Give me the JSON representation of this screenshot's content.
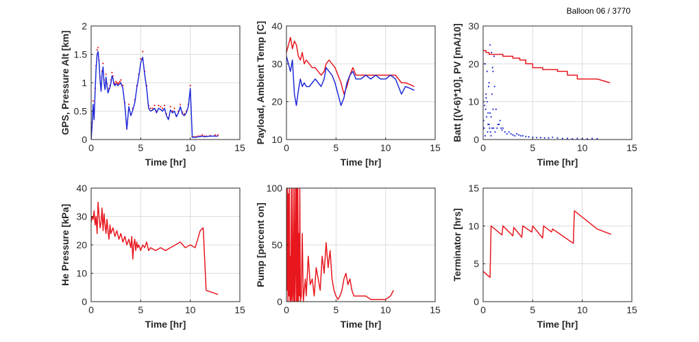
{
  "figure": {
    "title": "Balloon 06 / 3770"
  },
  "colors": {
    "red": "#e8161d",
    "blue": "#1f2ad6",
    "grid": "#dcdcdc",
    "axis": "#262626"
  },
  "chart_data": [
    {
      "type": "line",
      "xlabel": "Time [hr]",
      "ylabel": "GPS, Pressure Alt [km]",
      "xlim": [
        0,
        15
      ],
      "ylim": [
        0,
        2
      ],
      "xticks": [
        0,
        5,
        10,
        15
      ],
      "yticks": [
        0,
        0.5,
        1,
        1.5,
        2
      ],
      "grid": true,
      "series": [
        {
          "color": "#e8161d",
          "style": "dots",
          "x": [
            0,
            0.1,
            0.2,
            0.3,
            0.4,
            0.5,
            0.6,
            0.7,
            0.8,
            0.9,
            1.0,
            1.1,
            1.2,
            1.3,
            1.4,
            1.5,
            1.6,
            1.7,
            1.8,
            1.9,
            2.0,
            2.1,
            2.2,
            2.3,
            2.4,
            2.5,
            2.6,
            2.7,
            2.8,
            2.9,
            3.0,
            3.2,
            3.4,
            3.6,
            3.8,
            4.0,
            4.2,
            4.4,
            4.6,
            4.8,
            5.0,
            5.2,
            5.4,
            5.6,
            5.8,
            6.0,
            6.2,
            6.4,
            6.6,
            6.8,
            7.0,
            7.2,
            7.4,
            7.6,
            7.8,
            8.0,
            8.2,
            8.4,
            8.6,
            8.8,
            9.0,
            9.2,
            9.4,
            9.6,
            9.8,
            10.0,
            10.2,
            10.4,
            10.6,
            10.8,
            11.0,
            11.2,
            11.4,
            11.6,
            12.0,
            12.5,
            12.8
          ],
          "y": [
            0.05,
            0.3,
            0.68,
            0.4,
            0.9,
            1.3,
            1.58,
            1.62,
            1.4,
            1.1,
            0.9,
            1.2,
            1.34,
            1.05,
            0.92,
            1.15,
            0.98,
            0.85,
            0.9,
            0.95,
            1.05,
            1.18,
            1.12,
            1.0,
            0.98,
            1.02,
            1.0,
            0.98,
            1.0,
            1.02,
            1.05,
            0.95,
            0.65,
            0.2,
            0.62,
            0.45,
            0.55,
            0.7,
            0.95,
            1.15,
            1.42,
            1.55,
            1.2,
            0.95,
            0.6,
            0.55,
            0.55,
            0.6,
            0.5,
            0.6,
            0.58,
            0.55,
            0.6,
            0.45,
            0.38,
            0.58,
            0.5,
            0.55,
            0.42,
            0.5,
            0.62,
            0.48,
            0.45,
            0.5,
            0.62,
            0.95,
            0.05,
            0.05,
            0.05,
            0.06,
            0.06,
            0.08,
            0.06,
            0.06,
            0.07,
            0.08,
            0.08
          ]
        },
        {
          "color": "#1f2ad6",
          "style": "line",
          "x": [
            0,
            0.1,
            0.2,
            0.3,
            0.4,
            0.5,
            0.6,
            0.7,
            0.8,
            0.9,
            1.0,
            1.1,
            1.2,
            1.3,
            1.4,
            1.5,
            1.6,
            1.7,
            1.8,
            1.9,
            2.0,
            2.1,
            2.2,
            2.3,
            2.4,
            2.5,
            2.6,
            2.7,
            2.8,
            2.9,
            3.0,
            3.2,
            3.4,
            3.6,
            3.8,
            4.0,
            4.2,
            4.4,
            4.6,
            4.8,
            5.0,
            5.2,
            5.4,
            5.6,
            5.8,
            6.0,
            6.2,
            6.4,
            6.6,
            6.8,
            7.0,
            7.2,
            7.4,
            7.6,
            7.8,
            8.0,
            8.2,
            8.4,
            8.6,
            8.8,
            9.0,
            9.2,
            9.4,
            9.6,
            9.8,
            10.0,
            10.2,
            10.4,
            10.6,
            10.8,
            11.0,
            11.2,
            11.4,
            11.6,
            12.0,
            12.5,
            12.8
          ],
          "y": [
            0.0,
            0.25,
            0.62,
            0.35,
            0.85,
            1.25,
            1.5,
            1.55,
            1.35,
            1.05,
            0.85,
            1.15,
            1.28,
            1.0,
            0.88,
            1.1,
            0.95,
            0.82,
            0.87,
            0.92,
            1.0,
            1.12,
            1.08,
            0.97,
            0.95,
            0.98,
            0.97,
            0.95,
            0.97,
            0.98,
            1.0,
            0.9,
            0.6,
            0.18,
            0.58,
            0.42,
            0.52,
            0.65,
            0.9,
            1.1,
            1.35,
            1.45,
            1.15,
            0.9,
            0.55,
            0.5,
            0.52,
            0.55,
            0.47,
            0.55,
            0.53,
            0.5,
            0.55,
            0.42,
            0.35,
            0.52,
            0.47,
            0.5,
            0.4,
            0.47,
            0.58,
            0.45,
            0.42,
            0.47,
            0.58,
            0.9,
            0.04,
            0.04,
            0.04,
            0.05,
            0.05,
            0.06,
            0.05,
            0.05,
            0.06,
            0.06,
            0.06
          ]
        }
      ]
    },
    {
      "type": "line",
      "xlabel": "Time [hr]",
      "ylabel": "Payload, Ambient Temp [C]",
      "xlim": [
        0,
        15
      ],
      "ylim": [
        10,
        40
      ],
      "xticks": [
        0,
        5,
        10,
        15
      ],
      "yticks": [
        10,
        20,
        30,
        40
      ],
      "grid": true,
      "series": [
        {
          "color": "#e8161d",
          "style": "line",
          "x": [
            0,
            0.2,
            0.4,
            0.6,
            0.8,
            1.0,
            1.2,
            1.4,
            1.6,
            1.8,
            2.0,
            2.3,
            2.6,
            2.9,
            3.2,
            3.5,
            3.8,
            4.0,
            4.3,
            4.6,
            4.9,
            5.2,
            5.5,
            5.8,
            6.1,
            6.4,
            6.7,
            7.0,
            7.5,
            8.0,
            8.5,
            9.0,
            9.5,
            10.0,
            10.5,
            11.0,
            11.3,
            11.6,
            12.0,
            12.5,
            12.9
          ],
          "y": [
            33,
            35,
            37,
            34,
            36,
            35,
            32,
            31,
            33,
            30,
            31,
            30,
            29,
            29,
            28,
            27,
            28,
            30,
            31,
            30,
            29,
            27,
            25,
            22,
            24,
            27,
            29,
            27,
            27,
            27,
            27,
            27,
            27,
            27,
            27,
            27,
            26,
            25,
            25,
            24.5,
            24
          ]
        },
        {
          "color": "#1f2ad6",
          "style": "line",
          "x": [
            0,
            0.2,
            0.4,
            0.6,
            0.8,
            1.0,
            1.2,
            1.4,
            1.6,
            1.8,
            2.0,
            2.3,
            2.6,
            2.9,
            3.2,
            3.5,
            3.8,
            4.0,
            4.3,
            4.6,
            4.9,
            5.2,
            5.5,
            5.8,
            6.1,
            6.4,
            6.7,
            7.0,
            7.5,
            8.0,
            8.5,
            9.0,
            9.5,
            10.0,
            10.5,
            11.0,
            11.3,
            11.6,
            12.0,
            12.5,
            12.9
          ],
          "y": [
            32,
            30,
            28,
            31,
            22,
            19,
            23,
            26,
            24,
            25,
            24,
            24,
            25,
            26,
            25,
            24,
            26,
            29,
            28,
            27,
            25,
            22,
            19,
            21,
            25,
            27,
            28,
            26,
            26,
            27,
            26,
            27,
            26,
            26,
            27,
            26,
            24,
            22,
            24,
            23.5,
            23
          ]
        }
      ]
    },
    {
      "type": "line",
      "xlabel": "Time [hr]",
      "ylabel": "Batt [(V-6)*10], PV [mA/10]",
      "xlim": [
        0,
        15
      ],
      "ylim": [
        0,
        30
      ],
      "xticks": [
        0,
        5,
        10,
        15
      ],
      "yticks": [
        0,
        10,
        20,
        30
      ],
      "grid": true,
      "series": [
        {
          "color": "#e8161d",
          "style": "line",
          "x": [
            0,
            0.3,
            0.3,
            0.6,
            0.6,
            2.0,
            2.0,
            3.0,
            3.0,
            3.7,
            3.7,
            4.3,
            4.3,
            5.0,
            5.0,
            6.0,
            6.0,
            7.5,
            7.5,
            8.5,
            8.5,
            9.5,
            9.5,
            11.5,
            12.8
          ],
          "y": [
            23.5,
            23.5,
            23,
            23,
            22.5,
            22.5,
            22,
            22,
            21.5,
            21.5,
            21,
            21,
            20,
            20,
            19,
            19,
            18.5,
            18.5,
            18,
            18,
            17,
            17,
            16,
            16,
            15
          ]
        },
        {
          "color": "#1f2ad6",
          "style": "dots",
          "x": [
            0.05,
            0.1,
            0.15,
            0.2,
            0.25,
            0.3,
            0.35,
            0.4,
            0.45,
            0.5,
            0.55,
            0.6,
            0.65,
            0.7,
            0.75,
            0.8,
            0.85,
            0.9,
            0.95,
            1.0,
            1.05,
            1.1,
            1.15,
            1.2,
            1.3,
            1.4,
            1.5,
            1.6,
            1.7,
            1.8,
            1.9,
            2.0,
            2.2,
            2.4,
            2.6,
            2.8,
            3.0,
            3.2,
            3.4,
            3.6,
            3.8,
            4.0,
            4.3,
            4.6,
            5.0,
            5.4,
            5.8,
            6.2,
            6.6,
            7.0,
            7.5,
            8.0,
            8.5,
            9.0,
            9.5,
            10.0,
            10.5,
            11.0,
            11.5,
            0.2,
            0.4,
            0.6,
            0.8,
            1.0,
            0.3,
            0.5,
            0.7,
            0.9
          ],
          "y": [
            5,
            3,
            9,
            1,
            8,
            12,
            6,
            10,
            2,
            7,
            14,
            4,
            3,
            25,
            2,
            1,
            23,
            12,
            19,
            18,
            3,
            22,
            14,
            2,
            8,
            3,
            4,
            4,
            5,
            3,
            2.5,
            3,
            2,
            1.5,
            2,
            1.5,
            1.2,
            1,
            1.5,
            1.2,
            1,
            1,
            0.8,
            0.7,
            0.6,
            0.5,
            0.5,
            0.4,
            0.4,
            0.6,
            0.4,
            0.3,
            0.3,
            0.2,
            0.3,
            0.2,
            0.2,
            0.3,
            0.2,
            20,
            18,
            15,
            6,
            8,
            11,
            4,
            7,
            3
          ]
        }
      ]
    },
    {
      "type": "line",
      "xlabel": "Time [hr]",
      "ylabel": "He Pressure [kPa]",
      "xlim": [
        0,
        15
      ],
      "ylim": [
        0,
        40
      ],
      "xticks": [
        0,
        5,
        10,
        15
      ],
      "yticks": [
        0,
        10,
        20,
        30,
        40
      ],
      "grid": true,
      "series": [
        {
          "color": "#e8161d",
          "style": "line",
          "x": [
            0,
            0.1,
            0.2,
            0.3,
            0.4,
            0.5,
            0.6,
            0.7,
            0.8,
            0.9,
            1.0,
            1.1,
            1.2,
            1.3,
            1.4,
            1.5,
            1.6,
            1.7,
            1.8,
            1.9,
            2.0,
            2.2,
            2.4,
            2.6,
            2.8,
            3.0,
            3.2,
            3.4,
            3.6,
            3.8,
            4.0,
            4.1,
            4.2,
            4.3,
            4.4,
            4.5,
            4.6,
            4.7,
            4.8,
            5.0,
            5.2,
            5.4,
            5.6,
            5.8,
            6.0,
            6.5,
            7.0,
            7.5,
            8.0,
            8.5,
            9.0,
            9.5,
            10.0,
            10.5,
            11.0,
            11.3,
            11.6,
            12.8
          ],
          "y": [
            28,
            30,
            29,
            32,
            27,
            30,
            24,
            35,
            30,
            26,
            28,
            33,
            25,
            31,
            27,
            24,
            29,
            25,
            22,
            27,
            24,
            26,
            23,
            25,
            22,
            24,
            21,
            23,
            20,
            22,
            19,
            23,
            15,
            20,
            22,
            18,
            21,
            19,
            20,
            18,
            20,
            19,
            21,
            18,
            19,
            18,
            19,
            18,
            19,
            20,
            21,
            19,
            20,
            19,
            25,
            26,
            4,
            2.5
          ]
        }
      ]
    },
    {
      "type": "line",
      "xlabel": "Time [hr]",
      "ylabel": "Pump [percent on]",
      "xlim": [
        0,
        15
      ],
      "ylim": [
        0,
        100
      ],
      "xticks": [
        0,
        5,
        10,
        15
      ],
      "yticks": [
        0,
        50,
        100
      ],
      "grid": true,
      "series": [
        {
          "color": "#e8161d",
          "style": "line",
          "x": [
            0,
            0.05,
            0.1,
            0.15,
            0.2,
            0.25,
            0.3,
            0.35,
            0.4,
            0.45,
            0.5,
            0.55,
            0.6,
            0.65,
            0.7,
            0.75,
            0.8,
            0.85,
            0.9,
            0.95,
            1.0,
            1.05,
            1.1,
            1.15,
            1.2,
            1.25,
            1.3,
            1.35,
            1.4,
            1.5,
            1.6,
            1.7,
            1.8,
            1.9,
            2.0,
            2.2,
            2.4,
            2.6,
            2.8,
            3.0,
            3.2,
            3.4,
            3.6,
            3.8,
            4.0,
            4.2,
            4.4,
            4.6,
            4.8,
            5.0,
            5.2,
            5.4,
            5.6,
            5.8,
            6.0,
            6.2,
            6.4,
            6.6,
            6.8,
            7.0,
            7.5,
            8.0,
            8.5,
            9.0,
            9.5,
            10.0,
            10.5,
            10.8
          ],
          "y": [
            80,
            10,
            100,
            0,
            95,
            5,
            100,
            0,
            40,
            0,
            100,
            3,
            0,
            100,
            10,
            0,
            100,
            0,
            35,
            100,
            0,
            100,
            0,
            100,
            0,
            60,
            5,
            100,
            0,
            5,
            60,
            0,
            10,
            20,
            5,
            40,
            15,
            20,
            5,
            30,
            20,
            10,
            40,
            25,
            52,
            30,
            45,
            20,
            10,
            5,
            2,
            5,
            10,
            20,
            25,
            15,
            20,
            10,
            5,
            5,
            5,
            5,
            2,
            2,
            2,
            2,
            5,
            10
          ]
        }
      ]
    },
    {
      "type": "line",
      "xlabel": "Time [hr]",
      "ylabel": "Terminator [hrs]",
      "xlim": [
        0,
        15
      ],
      "ylim": [
        0,
        15
      ],
      "xticks": [
        0,
        5,
        10,
        15
      ],
      "yticks": [
        0,
        5,
        10,
        15
      ],
      "grid": true,
      "series": [
        {
          "color": "#e8161d",
          "style": "line",
          "x": [
            0,
            0.7,
            0.8,
            1.9,
            2.0,
            3.0,
            3.1,
            3.9,
            4.0,
            4.9,
            5.0,
            6.0,
            6.1,
            6.9,
            7.0,
            9.1,
            9.2,
            11.5,
            12.9
          ],
          "y": [
            4,
            3.2,
            10,
            8.8,
            10,
            8.7,
            9.8,
            8.5,
            10,
            9.2,
            10,
            8.4,
            10,
            9.2,
            9.6,
            7.7,
            12,
            9.6,
            8.9
          ]
        }
      ]
    }
  ]
}
